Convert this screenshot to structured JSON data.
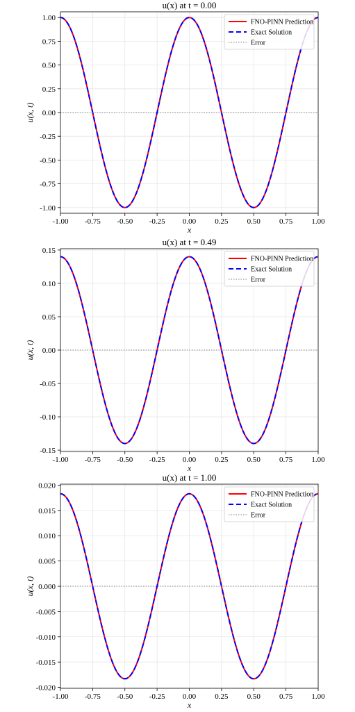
{
  "chart_data": [
    {
      "type": "line",
      "title": "u(x) at t = 0.00",
      "xlabel": "x",
      "ylabel": "u(x, t)",
      "xlim": [
        -1.0,
        1.0
      ],
      "ylim": [
        -1.06,
        1.06
      ],
      "x_ticks": [
        "-1.00",
        "-0.75",
        "-0.50",
        "-0.25",
        "0.00",
        "0.25",
        "0.50",
        "0.75",
        "1.00"
      ],
      "y_ticks": [
        "1.00",
        "0.75",
        "0.50",
        "0.25",
        "0.00",
        "-0.25",
        "-0.50",
        "-0.75",
        "-1.00"
      ],
      "y_tick_values": [
        1.0,
        0.75,
        0.5,
        0.25,
        0.0,
        -0.25,
        -0.5,
        -0.75,
        -1.0
      ],
      "grid": true,
      "legend_position": "top-right",
      "series": [
        {
          "name": "FNO-PINN Prediction",
          "color": "#ff0000",
          "style": "solid",
          "function": "cos(2*pi*x)",
          "amplitude": 1.0
        },
        {
          "name": "Exact Solution",
          "color": "#0000ff",
          "style": "dashed",
          "function": "cos(2*pi*x)",
          "amplitude": 1.0
        },
        {
          "name": "Error",
          "color": "#808080",
          "style": "dotted",
          "function": "zero",
          "amplitude": 0.0
        }
      ]
    },
    {
      "type": "line",
      "title": "u(x) at t = 0.49",
      "xlabel": "x",
      "ylabel": "u(x, t)",
      "xlim": [
        -1.0,
        1.0
      ],
      "ylim": [
        -0.152,
        0.152
      ],
      "x_ticks": [
        "-1.00",
        "-0.75",
        "-0.50",
        "-0.25",
        "0.00",
        "0.25",
        "0.50",
        "0.75",
        "1.00"
      ],
      "y_ticks": [
        "0.15",
        "0.10",
        "0.05",
        "0.00",
        "-0.05",
        "-0.10",
        "-0.15"
      ],
      "y_tick_values": [
        0.15,
        0.1,
        0.05,
        0.0,
        -0.05,
        -0.1,
        -0.15
      ],
      "grid": true,
      "legend_position": "top-right",
      "series": [
        {
          "name": "FNO-PINN Prediction",
          "color": "#ff0000",
          "style": "solid",
          "function": "cos(2*pi*x)",
          "amplitude": 0.14
        },
        {
          "name": "Exact Solution",
          "color": "#0000ff",
          "style": "dashed",
          "function": "cos(2*pi*x)",
          "amplitude": 0.14
        },
        {
          "name": "Error",
          "color": "#808080",
          "style": "dotted",
          "function": "zero",
          "amplitude": 0.0
        }
      ]
    },
    {
      "type": "line",
      "title": "u(x) at t = 1.00",
      "xlabel": "x",
      "ylabel": "u(x, t)",
      "xlim": [
        -1.0,
        1.0
      ],
      "ylim": [
        -0.0202,
        0.0202
      ],
      "x_ticks": [
        "-1.00",
        "-0.75",
        "-0.50",
        "-0.25",
        "0.00",
        "0.25",
        "0.50",
        "0.75",
        "1.00"
      ],
      "y_ticks": [
        "0.020",
        "0.015",
        "0.010",
        "0.005",
        "0.000",
        "-0.005",
        "-0.010",
        "-0.015",
        "-0.020"
      ],
      "y_tick_values": [
        0.02,
        0.015,
        0.01,
        0.005,
        0.0,
        -0.005,
        -0.01,
        -0.015,
        -0.02
      ],
      "grid": true,
      "legend_position": "top-right",
      "series": [
        {
          "name": "FNO-PINN Prediction",
          "color": "#ff0000",
          "style": "solid",
          "function": "cos(2*pi*x)",
          "amplitude": 0.0183
        },
        {
          "name": "Exact Solution",
          "color": "#0000ff",
          "style": "dashed",
          "function": "cos(2*pi*x)",
          "amplitude": 0.0183
        },
        {
          "name": "Error",
          "color": "#808080",
          "style": "dotted",
          "function": "zero",
          "amplitude": 0.0
        }
      ]
    }
  ]
}
